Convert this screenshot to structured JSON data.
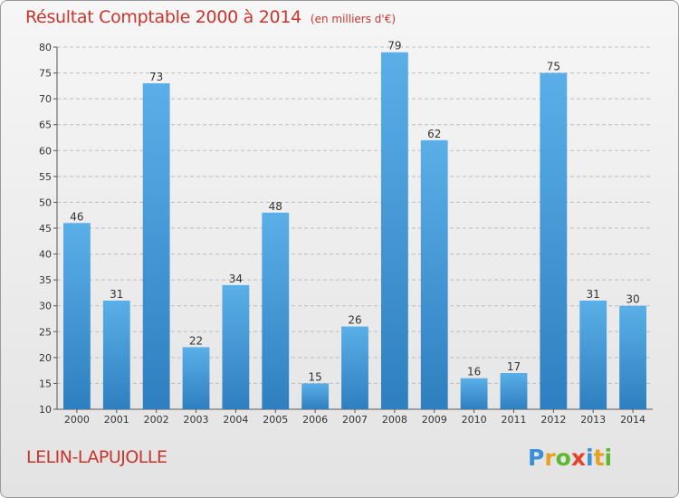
{
  "chart_data": {
    "type": "bar",
    "title": "Résultat Comptable 2000 à 2014",
    "subtitle": "(en milliers d'€)",
    "categories": [
      "2000",
      "2001",
      "2002",
      "2003",
      "2004",
      "2005",
      "2006",
      "2007",
      "2008",
      "2009",
      "2010",
      "2011",
      "2012",
      "2013",
      "2014"
    ],
    "values": [
      46,
      31,
      73,
      22,
      34,
      48,
      15,
      26,
      79,
      62,
      16,
      17,
      75,
      31,
      30
    ],
    "ylim": [
      10,
      80
    ],
    "yticks": [
      10,
      15,
      20,
      25,
      30,
      35,
      40,
      45,
      50,
      55,
      60,
      65,
      70,
      75,
      80
    ],
    "xlabel": "",
    "ylabel": "",
    "grid": true,
    "bar_color_top": "#5aafe8",
    "bar_color_bottom": "#2e7fbf"
  },
  "footer": {
    "commune": "LELIN-LAPUJOLLE"
  },
  "logo": {
    "letters": [
      "P",
      "r",
      "o",
      "x",
      "i",
      "t",
      "i"
    ],
    "colors": [
      "#3a8fd8",
      "#e8a020",
      "#5cb82e",
      "#e8402a",
      "#3a8fd8",
      "#e8a020",
      "#5cb82e"
    ]
  }
}
